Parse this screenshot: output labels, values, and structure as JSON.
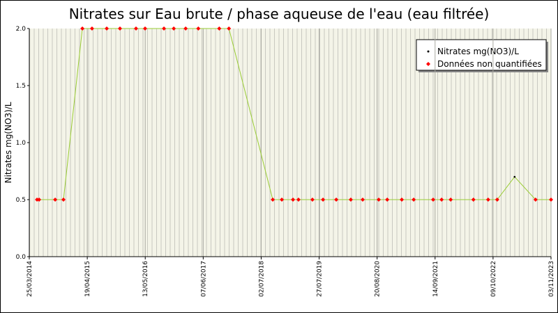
{
  "chart_data": {
    "type": "line",
    "title": "Nitrates sur Eau brute / phase aqueuse de l'eau (eau filtrée)",
    "y_label": "Nitrates mg(NO3)/L",
    "x": [
      "16/05/2014",
      "30/05/2014",
      "15/09/2014",
      "10/11/2014",
      "17/03/2015",
      "21/05/2015",
      "28/08/2015",
      "25/11/2015",
      "12/03/2016",
      "12/05/2016",
      "16/09/2016",
      "21/11/2016",
      "09/02/2017",
      "05/05/2017",
      "23/09/2017",
      "27/11/2017",
      "18/09/2018",
      "18/11/2018",
      "01/02/2019",
      "10/03/2019",
      "12/06/2019",
      "22/08/2019",
      "19/11/2019",
      "25/02/2020",
      "15/05/2020",
      "31/08/2020",
      "27/10/2020",
      "02/02/2021",
      "23/04/2021",
      "01/09/2021",
      "28/10/2021",
      "28/12/2021",
      "30/05/2022",
      "06/09/2022",
      "06/11/2022",
      "03/03/2023",
      "22/07/2023",
      "03/11/2023"
    ],
    "series": [
      {
        "name": "Nitrates mg(NO3)/L",
        "color": "#99cc33",
        "values": [
          0.5,
          0.5,
          0.5,
          0.5,
          2,
          2,
          2,
          2,
          2,
          2,
          2,
          2,
          2,
          2,
          2,
          2,
          0.5,
          0.5,
          0.5,
          0.5,
          0.5,
          0.5,
          0.5,
          0.5,
          0.5,
          0.5,
          0.5,
          0.5,
          0.5,
          0.5,
          0.5,
          0.5,
          0.5,
          0.5,
          0.5,
          0.7,
          0.5,
          0.5
        ]
      },
      {
        "name": "Données non quantifiées",
        "color": "#ff0000",
        "values": [
          0.5,
          0.5,
          0.5,
          0.5,
          2,
          2,
          2,
          2,
          2,
          2,
          2,
          2,
          2,
          2,
          2,
          2,
          0.5,
          0.5,
          0.5,
          0.5,
          0.5,
          0.5,
          0.5,
          0.5,
          0.5,
          0.5,
          0.5,
          0.5,
          0.5,
          0.5,
          0.5,
          0.5,
          0.5,
          0.5,
          0.5,
          null,
          0.5,
          0.5
        ]
      }
    ],
    "xlim": [
      "25/03/2014",
      "03/11/2023"
    ],
    "xticks": [
      "25/03/2014",
      "19/04/2015",
      "13/05/2016",
      "07/06/2017",
      "02/07/2018",
      "27/07/2019",
      "20/08/2020",
      "14/09/2021",
      "09/10/2022",
      "03/11/2023"
    ],
    "ylim": [
      0,
      2
    ],
    "yticks": [
      {
        "value": 0,
        "label": "0.0"
      },
      {
        "value": 0.5,
        "label": "0.5"
      },
      {
        "value": 1,
        "label": "1.0"
      },
      {
        "value": 1.5,
        "label": "1.5"
      },
      {
        "value": 2,
        "label": "2.0"
      }
    ],
    "grid": true,
    "legend": "top-right"
  }
}
